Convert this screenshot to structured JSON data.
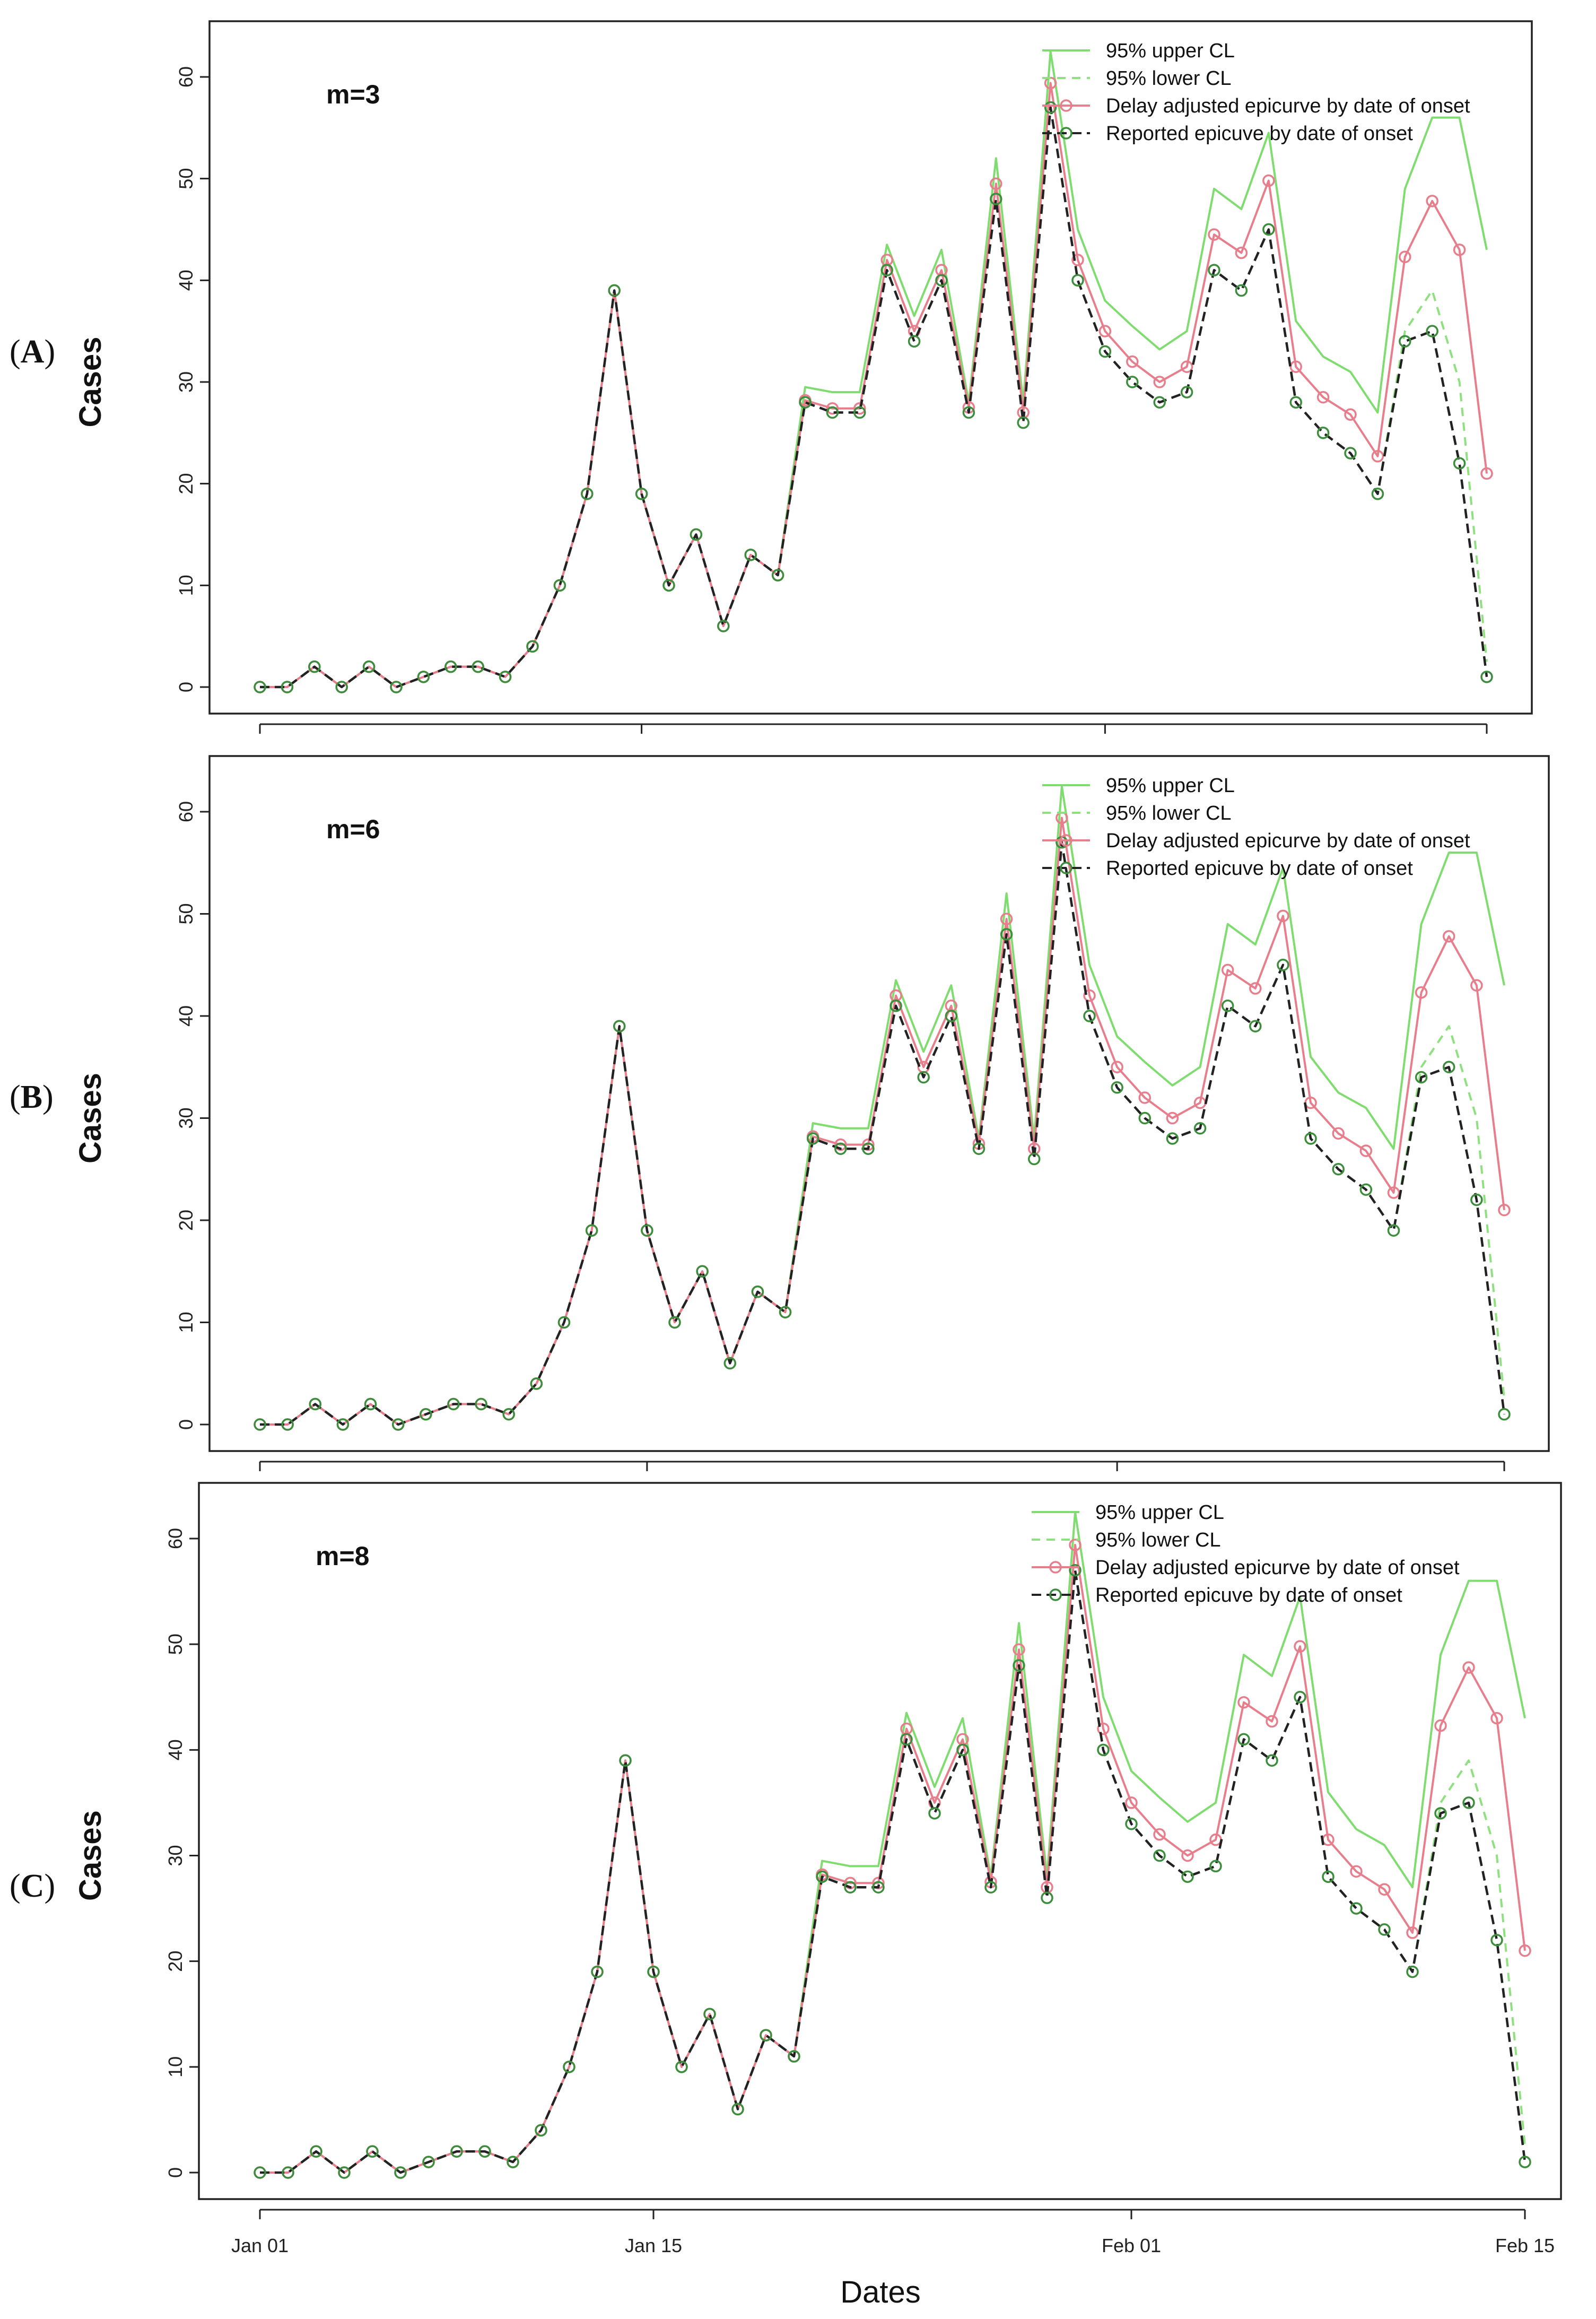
{
  "figure": {
    "x_axis_title": "Dates",
    "x_tick_labels": [
      "Jan 01",
      "Jan 15",
      "Feb 01",
      "Feb 15"
    ],
    "x_tick_days": [
      0,
      14,
      31,
      45
    ],
    "colors": {
      "upper": "#7fdc6f",
      "lower": "#8fe07f",
      "adjusted": "#e87e8c",
      "reported": "#222222",
      "reported_marker": "#3c8d3c"
    }
  },
  "chart_data": [
    {
      "type": "line",
      "panel_label": "(A)",
      "panel_letter": "A",
      "annotation": "m=3",
      "ylabel": "Cases",
      "xlabel": "",
      "ylim": [
        0,
        60
      ],
      "y_ticks": [
        0,
        10,
        20,
        30,
        40,
        50,
        60
      ],
      "days": [
        0,
        1,
        2,
        3,
        4,
        5,
        6,
        7,
        8,
        9,
        10,
        11,
        12,
        13,
        14,
        15,
        16,
        17,
        18,
        19,
        20,
        21,
        22,
        23,
        24,
        25,
        26,
        27,
        28,
        29,
        30,
        31,
        32,
        33,
        34,
        35,
        36,
        37,
        38,
        39,
        40,
        41,
        42,
        43,
        44,
        45
      ],
      "legend": [
        "95% upper CL",
        "95% lower CL",
        "Delay adjusted epicurve by date of onset",
        "Reported epicuve by date of onset"
      ],
      "series": [
        {
          "name": "95% upper CL",
          "values": [
            0,
            0,
            2,
            0,
            2,
            0,
            1,
            2,
            2,
            1,
            4,
            10,
            19,
            39,
            19,
            10,
            15,
            6,
            13,
            11,
            29.5,
            29,
            29,
            43.5,
            36.5,
            43,
            28,
            52,
            28,
            62.5,
            45,
            38,
            35.5,
            33.2,
            35,
            49,
            47,
            54.5,
            36,
            32.5,
            31,
            27,
            49,
            56,
            56,
            43
          ]
        },
        {
          "name": "95% lower CL",
          "values": [
            0,
            0,
            2,
            0,
            2,
            0,
            1,
            2,
            2,
            1,
            4,
            10,
            19,
            39,
            19,
            10,
            15,
            6,
            13,
            11,
            28,
            27,
            27,
            41,
            34,
            40,
            27,
            48,
            26,
            57,
            40,
            33,
            30,
            28,
            29,
            41,
            39,
            45,
            28,
            25,
            23,
            19,
            35,
            39,
            30,
            2.5
          ]
        },
        {
          "name": "Delay adjusted epicurve by date of onset",
          "values": [
            0,
            0,
            2,
            0,
            2,
            0,
            1,
            2,
            2,
            1,
            4,
            10,
            19,
            39,
            19,
            10,
            15,
            6,
            13,
            11,
            28.2,
            27.4,
            27.4,
            42,
            35,
            41,
            27.5,
            49.5,
            27,
            59.4,
            42,
            35,
            32,
            30,
            31.5,
            44.5,
            42.7,
            49.8,
            31.5,
            28.5,
            26.8,
            22.7,
            42.3,
            47.8,
            43,
            21
          ]
        },
        {
          "name": "Reported epicuve by date of onset",
          "values": [
            0,
            0,
            2,
            0,
            2,
            0,
            1,
            2,
            2,
            1,
            4,
            10,
            19,
            39,
            19,
            10,
            15,
            6,
            13,
            11,
            28,
            27,
            27,
            41,
            34,
            40,
            27,
            48,
            26,
            57,
            40,
            33,
            30,
            28,
            29,
            41,
            39,
            45,
            28,
            25,
            23,
            19,
            34,
            35,
            22,
            1
          ]
        }
      ]
    },
    {
      "type": "line",
      "panel_label": "(B)",
      "panel_letter": "B",
      "annotation": "m=6",
      "ylabel": "Cases",
      "xlabel": "",
      "ylim": [
        0,
        60
      ],
      "y_ticks": [
        0,
        10,
        20,
        30,
        40,
        50,
        60
      ],
      "days": [
        0,
        1,
        2,
        3,
        4,
        5,
        6,
        7,
        8,
        9,
        10,
        11,
        12,
        13,
        14,
        15,
        16,
        17,
        18,
        19,
        20,
        21,
        22,
        23,
        24,
        25,
        26,
        27,
        28,
        29,
        30,
        31,
        32,
        33,
        34,
        35,
        36,
        37,
        38,
        39,
        40,
        41,
        42,
        43,
        44,
        45
      ],
      "legend": [
        "95% upper CL",
        "95% lower CL",
        "Delay adjusted epicurve by date of onset",
        "Reported epicuve by date of onset"
      ],
      "series": [
        {
          "name": "95% upper CL",
          "values": [
            0,
            0,
            2,
            0,
            2,
            0,
            1,
            2,
            2,
            1,
            4,
            10,
            19,
            39,
            19,
            10,
            15,
            6,
            13,
            11,
            29.5,
            29,
            29,
            43.5,
            36.5,
            43,
            28,
            52,
            28,
            62.5,
            45,
            38,
            35.5,
            33.2,
            35,
            49,
            47,
            54.5,
            36,
            32.5,
            31,
            27,
            49,
            56,
            56,
            43
          ]
        },
        {
          "name": "95% lower CL",
          "values": [
            0,
            0,
            2,
            0,
            2,
            0,
            1,
            2,
            2,
            1,
            4,
            10,
            19,
            39,
            19,
            10,
            15,
            6,
            13,
            11,
            28,
            27,
            27,
            41,
            34,
            40,
            27,
            48,
            26,
            57,
            40,
            33,
            30,
            28,
            29,
            41,
            39,
            45,
            28,
            25,
            23,
            19,
            35,
            39,
            30,
            2.5
          ]
        },
        {
          "name": "Delay adjusted epicurve by date of onset",
          "values": [
            0,
            0,
            2,
            0,
            2,
            0,
            1,
            2,
            2,
            1,
            4,
            10,
            19,
            39,
            19,
            10,
            15,
            6,
            13,
            11,
            28.2,
            27.4,
            27.4,
            42,
            35,
            41,
            27.5,
            49.5,
            27,
            59.4,
            42,
            35,
            32,
            30,
            31.5,
            44.5,
            42.7,
            49.8,
            31.5,
            28.5,
            26.8,
            22.7,
            42.3,
            47.8,
            43,
            21
          ]
        },
        {
          "name": "Reported epicuve by date of onset",
          "values": [
            0,
            0,
            2,
            0,
            2,
            0,
            1,
            2,
            2,
            1,
            4,
            10,
            19,
            39,
            19,
            10,
            15,
            6,
            13,
            11,
            28,
            27,
            27,
            41,
            34,
            40,
            27,
            48,
            26,
            57,
            40,
            33,
            30,
            28,
            29,
            41,
            39,
            45,
            28,
            25,
            23,
            19,
            34,
            35,
            22,
            1
          ]
        }
      ]
    },
    {
      "type": "line",
      "panel_label": "(C)",
      "panel_letter": "C",
      "annotation": "m=8",
      "ylabel": "Cases",
      "xlabel": "Dates",
      "ylim": [
        0,
        60
      ],
      "y_ticks": [
        0,
        10,
        20,
        30,
        40,
        50,
        60
      ],
      "days": [
        0,
        1,
        2,
        3,
        4,
        5,
        6,
        7,
        8,
        9,
        10,
        11,
        12,
        13,
        14,
        15,
        16,
        17,
        18,
        19,
        20,
        21,
        22,
        23,
        24,
        25,
        26,
        27,
        28,
        29,
        30,
        31,
        32,
        33,
        34,
        35,
        36,
        37,
        38,
        39,
        40,
        41,
        42,
        43,
        44,
        45
      ],
      "legend": [
        "95% upper CL",
        "95% lower CL",
        "Delay adjusted epicurve by date of onset",
        "Reported epicuve by date of onset"
      ],
      "series": [
        {
          "name": "95% upper CL",
          "values": [
            0,
            0,
            2,
            0,
            2,
            0,
            1,
            2,
            2,
            1,
            4,
            10,
            19,
            39,
            19,
            10,
            15,
            6,
            13,
            11,
            29.5,
            29,
            29,
            43.5,
            36.5,
            43,
            28,
            52,
            28,
            62.5,
            45,
            38,
            35.5,
            33.2,
            35,
            49,
            47,
            54.5,
            36,
            32.5,
            31,
            27,
            49,
            56,
            56,
            43
          ]
        },
        {
          "name": "95% lower CL",
          "values": [
            0,
            0,
            2,
            0,
            2,
            0,
            1,
            2,
            2,
            1,
            4,
            10,
            19,
            39,
            19,
            10,
            15,
            6,
            13,
            11,
            28,
            27,
            27,
            41,
            34,
            40,
            27,
            48,
            26,
            57,
            40,
            33,
            30,
            28,
            29,
            41,
            39,
            45,
            28,
            25,
            23,
            19,
            35,
            39,
            30,
            2.5
          ]
        },
        {
          "name": "Delay adjusted epicurve by date of onset",
          "values": [
            0,
            0,
            2,
            0,
            2,
            0,
            1,
            2,
            2,
            1,
            4,
            10,
            19,
            39,
            19,
            10,
            15,
            6,
            13,
            11,
            28.2,
            27.4,
            27.4,
            42,
            35,
            41,
            27.5,
            49.5,
            27,
            59.4,
            42,
            35,
            32,
            30,
            31.5,
            44.5,
            42.7,
            49.8,
            31.5,
            28.5,
            26.8,
            22.7,
            42.3,
            47.8,
            43,
            21
          ]
        },
        {
          "name": "Reported epicuve by date of onset",
          "values": [
            0,
            0,
            2,
            0,
            2,
            0,
            1,
            2,
            2,
            1,
            4,
            10,
            19,
            39,
            19,
            10,
            15,
            6,
            13,
            11,
            28,
            27,
            27,
            41,
            34,
            40,
            27,
            48,
            26,
            57,
            40,
            33,
            30,
            28,
            29,
            41,
            39,
            45,
            28,
            25,
            23,
            19,
            34,
            35,
            22,
            1
          ]
        }
      ]
    }
  ]
}
